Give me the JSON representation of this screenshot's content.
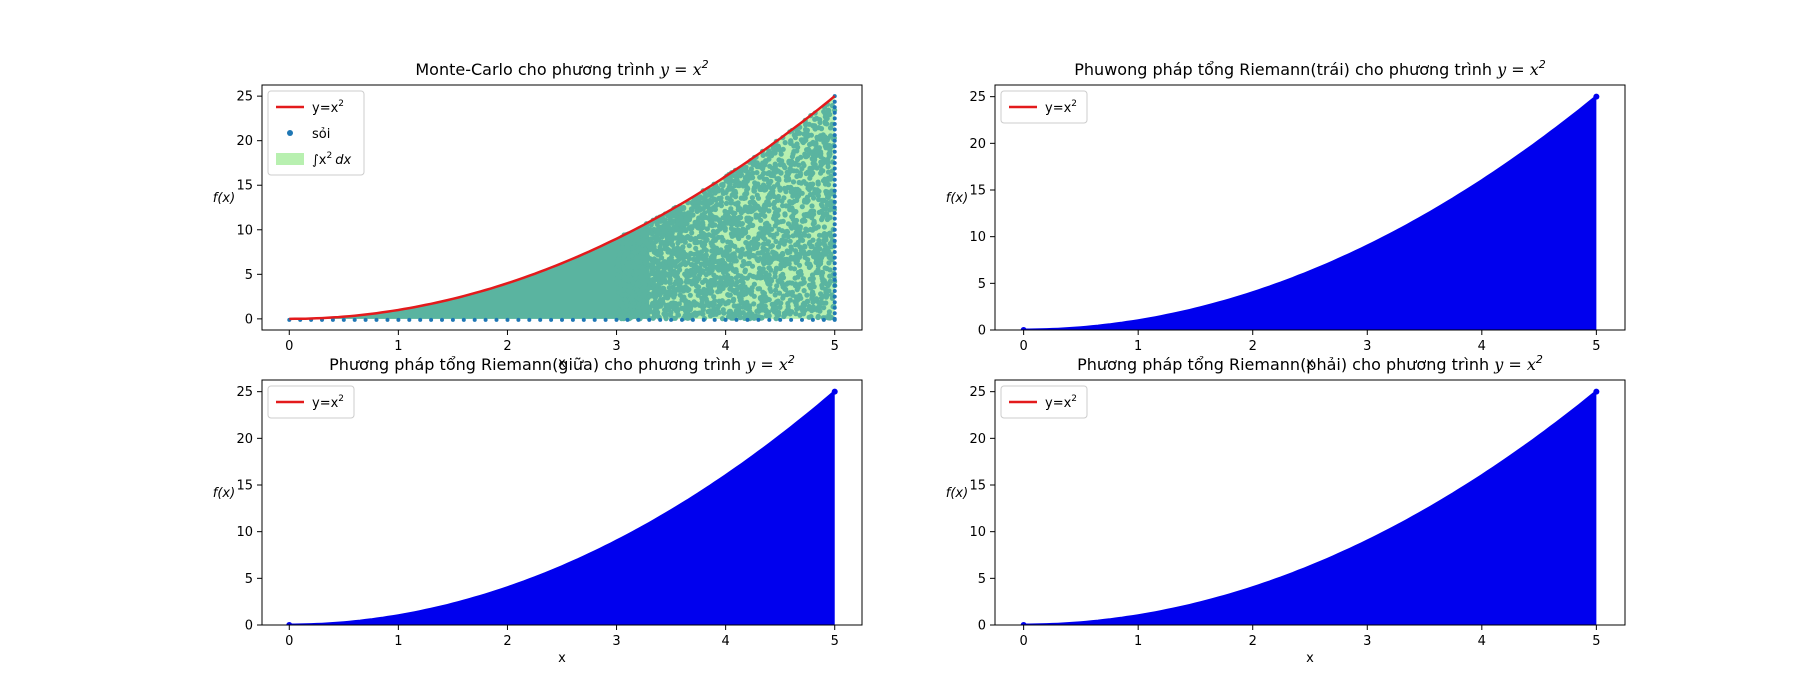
{
  "colors": {
    "curve": "#e31a1c",
    "points": "#1f77b4",
    "fill_green": "#b8f0b0",
    "fill_teal": "#5ab4a0",
    "bars": "#0000ee"
  },
  "chart_data": [
    {
      "id": "mc",
      "type": "scatter",
      "title_text": "Monte-Carlo cho phương trình ",
      "title_math_base": "y = x",
      "title_math_sup": "2",
      "xlabel": "x",
      "ylabel": "f(x)",
      "xlim": [
        -0.25,
        5.25
      ],
      "ylim": [
        -1.25,
        26.25
      ],
      "xticks": [
        0,
        1,
        2,
        3,
        4,
        5
      ],
      "yticks": [
        0,
        5,
        10,
        15,
        20,
        25
      ],
      "function": "y=x^2",
      "x_range": [
        0,
        5
      ],
      "legend_position": "upper-left",
      "legend": [
        {
          "kind": "line",
          "label_base": "y=x",
          "label_sup": "2"
        },
        {
          "kind": "dot",
          "label_base": "sỏi",
          "label_sup": ""
        },
        {
          "kind": "patch",
          "label_base": "∫x",
          "label_sup": "2",
          "label_tail": "dx"
        }
      ]
    },
    {
      "id": "left",
      "type": "bar",
      "title_text": "Phuwong pháp tổng Riemann(trái) cho phương trình ",
      "title_math_base": "y = x",
      "title_math_sup": "2",
      "xlabel": "x",
      "ylabel": "f(x)",
      "xlim": [
        -0.25,
        5.25
      ],
      "ylim": [
        0,
        26.25
      ],
      "xticks": [
        0,
        1,
        2,
        3,
        4,
        5
      ],
      "yticks": [
        0,
        5,
        10,
        15,
        20,
        25
      ],
      "function": "y=x^2",
      "x_range": [
        0,
        5
      ],
      "legend_position": "upper-left",
      "legend": [
        {
          "kind": "line",
          "label_base": "y=x",
          "label_sup": "2"
        }
      ]
    },
    {
      "id": "mid",
      "type": "bar",
      "title_text": "Phương pháp tổng Riemann(giữa) cho phương trình ",
      "title_math_base": "y = x",
      "title_math_sup": "2",
      "xlabel": "x",
      "ylabel": "f(x)",
      "xlim": [
        -0.25,
        5.25
      ],
      "ylim": [
        0,
        26.25
      ],
      "xticks": [
        0,
        1,
        2,
        3,
        4,
        5
      ],
      "yticks": [
        0,
        5,
        10,
        15,
        20,
        25
      ],
      "function": "y=x^2",
      "x_range": [
        0,
        5
      ],
      "legend_position": "upper-left",
      "legend": [
        {
          "kind": "line",
          "label_base": "y=x",
          "label_sup": "2"
        }
      ]
    },
    {
      "id": "right",
      "type": "bar",
      "title_text": "Phương pháp tổng Riemann(phải) cho phương trình ",
      "title_math_base": "y = x",
      "title_math_sup": "2",
      "xlabel": "x",
      "ylabel": "f(x)",
      "xlim": [
        -0.25,
        5.25
      ],
      "ylim": [
        0,
        26.25
      ],
      "xticks": [
        0,
        1,
        2,
        3,
        4,
        5
      ],
      "yticks": [
        0,
        5,
        10,
        15,
        20,
        25
      ],
      "function": "y=x^2",
      "x_range": [
        0,
        5
      ],
      "legend_position": "upper-left",
      "legend": [
        {
          "kind": "line",
          "label_base": "y=x",
          "label_sup": "2"
        }
      ]
    }
  ]
}
